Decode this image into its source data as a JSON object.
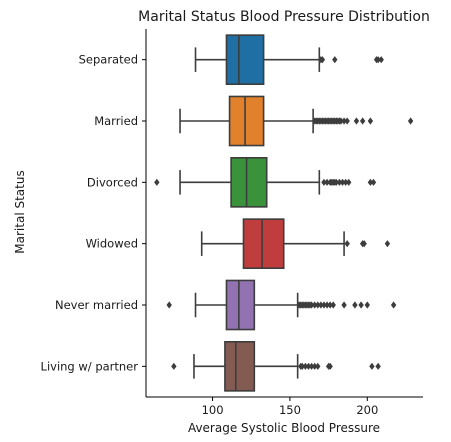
{
  "chart_data": {
    "type": "boxplot",
    "orientation": "horizontal",
    "title": "Marital Status Blood Pressure Distribution",
    "xlabel": "Average Systolic Blood Pressure",
    "ylabel": "Marital Status",
    "xlim": [
      57,
      236
    ],
    "xticks": [
      100,
      150,
      200
    ],
    "grid": false,
    "categories": [
      {
        "name": "Separated",
        "color": "#1f6fa4",
        "whisker_low": 89,
        "q1": 109,
        "median": 117,
        "q3": 133,
        "whisker_high": 169,
        "outliers": [
          170,
          171,
          179,
          206,
          207,
          209
        ]
      },
      {
        "name": "Married",
        "color": "#e1812c",
        "whisker_low": 79,
        "q1": 111,
        "median": 121,
        "q3": 133,
        "whisker_high": 165,
        "outliers": [
          166,
          167,
          168,
          169,
          170,
          171,
          172,
          173,
          174,
          175,
          176,
          177,
          178,
          179,
          180,
          181,
          182,
          183,
          185,
          187,
          193,
          197,
          202,
          228
        ]
      },
      {
        "name": "Divorced",
        "color": "#3a923a",
        "whisker_low": 79,
        "q1": 112,
        "median": 122,
        "q3": 135,
        "whisker_high": 169,
        "outliers": [
          64,
          172,
          174,
          176,
          177,
          178,
          179,
          180,
          182,
          184,
          186,
          188,
          202,
          204
        ]
      },
      {
        "name": "Widowed",
        "color": "#c03d3e",
        "whisker_low": 93,
        "q1": 120,
        "median": 132,
        "q3": 146,
        "whisker_high": 185,
        "outliers": [
          187,
          197,
          198,
          213
        ]
      },
      {
        "name": "Never married",
        "color": "#9372b2",
        "whisker_low": 89,
        "q1": 109,
        "median": 117,
        "q3": 127,
        "whisker_high": 155,
        "outliers": [
          72,
          156,
          157,
          158,
          159,
          160,
          161,
          162,
          163,
          164,
          166,
          168,
          170,
          172,
          174,
          176,
          178,
          185,
          192,
          196,
          200,
          217
        ]
      },
      {
        "name": "Living w/ partner",
        "color": "#845b53",
        "whisker_low": 88,
        "q1": 108,
        "median": 115,
        "q3": 127,
        "whisker_high": 155,
        "outliers": [
          75,
          157,
          158,
          160,
          162,
          164,
          166,
          168,
          175,
          176,
          203,
          207
        ]
      }
    ]
  }
}
